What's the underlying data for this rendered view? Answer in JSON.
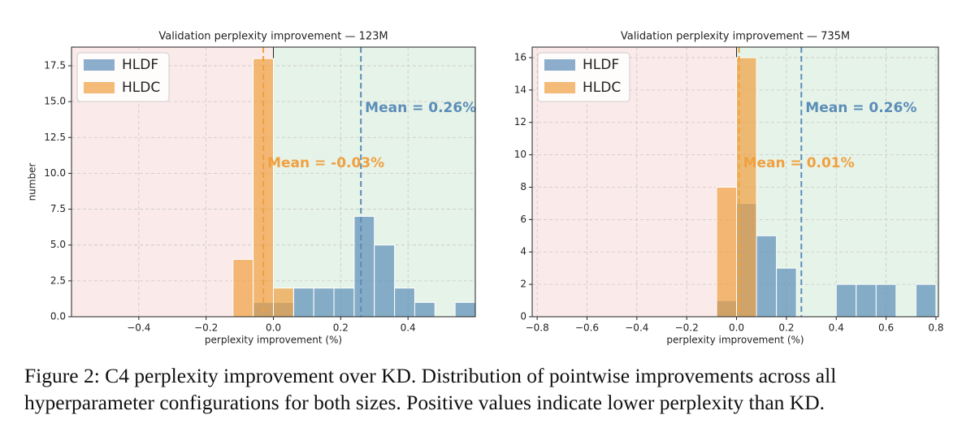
{
  "chart_data": [
    {
      "type": "histogram",
      "title": "Validation perplexity improvement — 123M",
      "xlabel": "perplexity improvement (%)",
      "ylabel": "number",
      "xlim": [
        -0.6,
        0.6
      ],
      "ylim": [
        0,
        18.8
      ],
      "grid": true,
      "legend": "upper left",
      "xticks": [
        {
          "value": -0.4,
          "label": "−0.4"
        },
        {
          "value": -0.2,
          "label": "−0.2"
        },
        {
          "value": 0,
          "label": "0.0"
        },
        {
          "value": 0.2,
          "label": "0.2"
        },
        {
          "value": 0.4,
          "label": "0.4"
        }
      ],
      "yticks": [
        {
          "value": 0,
          "label": "0.0"
        },
        {
          "value": 2.5,
          "label": "2.5"
        },
        {
          "value": 5,
          "label": "5.0"
        },
        {
          "value": 7.5,
          "label": "7.5"
        },
        {
          "value": 10,
          "label": "10.0"
        },
        {
          "value": 12.5,
          "label": "12.5"
        },
        {
          "value": 15,
          "label": "15.0"
        },
        {
          "value": 17.5,
          "label": "17.5"
        }
      ],
      "series": [
        {
          "name": "HLDF",
          "color": "#5b8db8",
          "bins": [
            -0.06,
            0,
            0.06,
            0.12,
            0.18,
            0.24,
            0.3,
            0.36,
            0.42,
            0.48,
            0.54,
            0.6
          ],
          "values": [
            1,
            1,
            2,
            2,
            2,
            7,
            5,
            2,
            1,
            0,
            1
          ],
          "mean": 0.26,
          "mean_label": "Mean = 0.26%"
        },
        {
          "name": "HLDC",
          "color": "#f0a040",
          "bins": [
            -0.12,
            -0.06,
            0,
            0.06
          ],
          "values": [
            4,
            18,
            2
          ],
          "mean": -0.03,
          "mean_label": "Mean = -0.03%"
        }
      ]
    },
    {
      "type": "histogram",
      "title": "Validation perplexity improvement — 735M",
      "xlabel": "perplexity improvement (%)",
      "xlim": [
        -0.82,
        0.81
      ],
      "ylim": [
        0,
        16.65
      ],
      "grid": true,
      "legend": "upper left",
      "xticks": [
        {
          "value": -0.8,
          "label": "−0.8"
        },
        {
          "value": -0.6,
          "label": "−0.6"
        },
        {
          "value": -0.4,
          "label": "−0.4"
        },
        {
          "value": -0.2,
          "label": "−0.2"
        },
        {
          "value": 0,
          "label": "0.0"
        },
        {
          "value": 0.2,
          "label": "0.2"
        },
        {
          "value": 0.4,
          "label": "0.4"
        },
        {
          "value": 0.6,
          "label": "0.6"
        },
        {
          "value": 0.8,
          "label": "0.8"
        }
      ],
      "yticks": [
        0,
        2,
        4,
        6,
        8,
        10,
        12,
        14,
        16
      ],
      "series": [
        {
          "name": "HLDF",
          "color": "#5b8db8",
          "bins": [
            -0.08,
            0,
            0.08,
            0.16,
            0.24,
            0.32,
            0.4,
            0.48,
            0.56,
            0.64,
            0.72,
            0.8
          ],
          "values": [
            1,
            7,
            5,
            3,
            0,
            0,
            2,
            2,
            2,
            0,
            2
          ],
          "mean": 0.26,
          "mean_label": "Mean = 0.26%"
        },
        {
          "name": "HLDC",
          "color": "#f0a040",
          "bins": [
            -0.08,
            0,
            0.08
          ],
          "values": [
            8,
            16
          ],
          "mean": 0.01,
          "mean_label": "Mean = 0.01%"
        }
      ]
    }
  ],
  "caption": "Figure 2: C4 perplexity improvement over KD. Distribution of pointwise improvements across all hyperparameter configurations for both sizes. Positive values indicate lower perplexity than KD."
}
